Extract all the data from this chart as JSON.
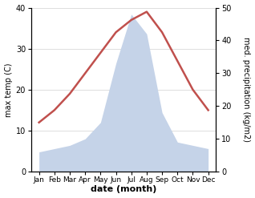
{
  "months": [
    "Jan",
    "Feb",
    "Mar",
    "Apr",
    "May",
    "Jun",
    "Jul",
    "Aug",
    "Sep",
    "Oct",
    "Nov",
    "Dec"
  ],
  "x": [
    0,
    1,
    2,
    3,
    4,
    5,
    6,
    7,
    8,
    9,
    10,
    11
  ],
  "temperature": [
    12,
    15,
    19,
    24,
    29,
    34,
    37,
    39,
    34,
    27,
    20,
    15
  ],
  "precipitation": [
    6,
    7,
    8,
    10,
    15,
    33,
    48,
    42,
    18,
    9,
    8,
    7
  ],
  "temp_color": "#c0504d",
  "precip_color": "#c5d3e8",
  "temp_ylim": [
    0,
    40
  ],
  "precip_ylim": [
    0,
    50
  ],
  "temp_yticks": [
    0,
    10,
    20,
    30,
    40
  ],
  "precip_yticks": [
    0,
    10,
    20,
    30,
    40,
    50
  ],
  "ylabel_left": "max temp (C)",
  "ylabel_right": "med. precipitation (kg/m2)",
  "xlabel": "date (month)",
  "bg_color": "#ffffff",
  "grid_color": "#d0d0d0",
  "linewidth": 1.8
}
